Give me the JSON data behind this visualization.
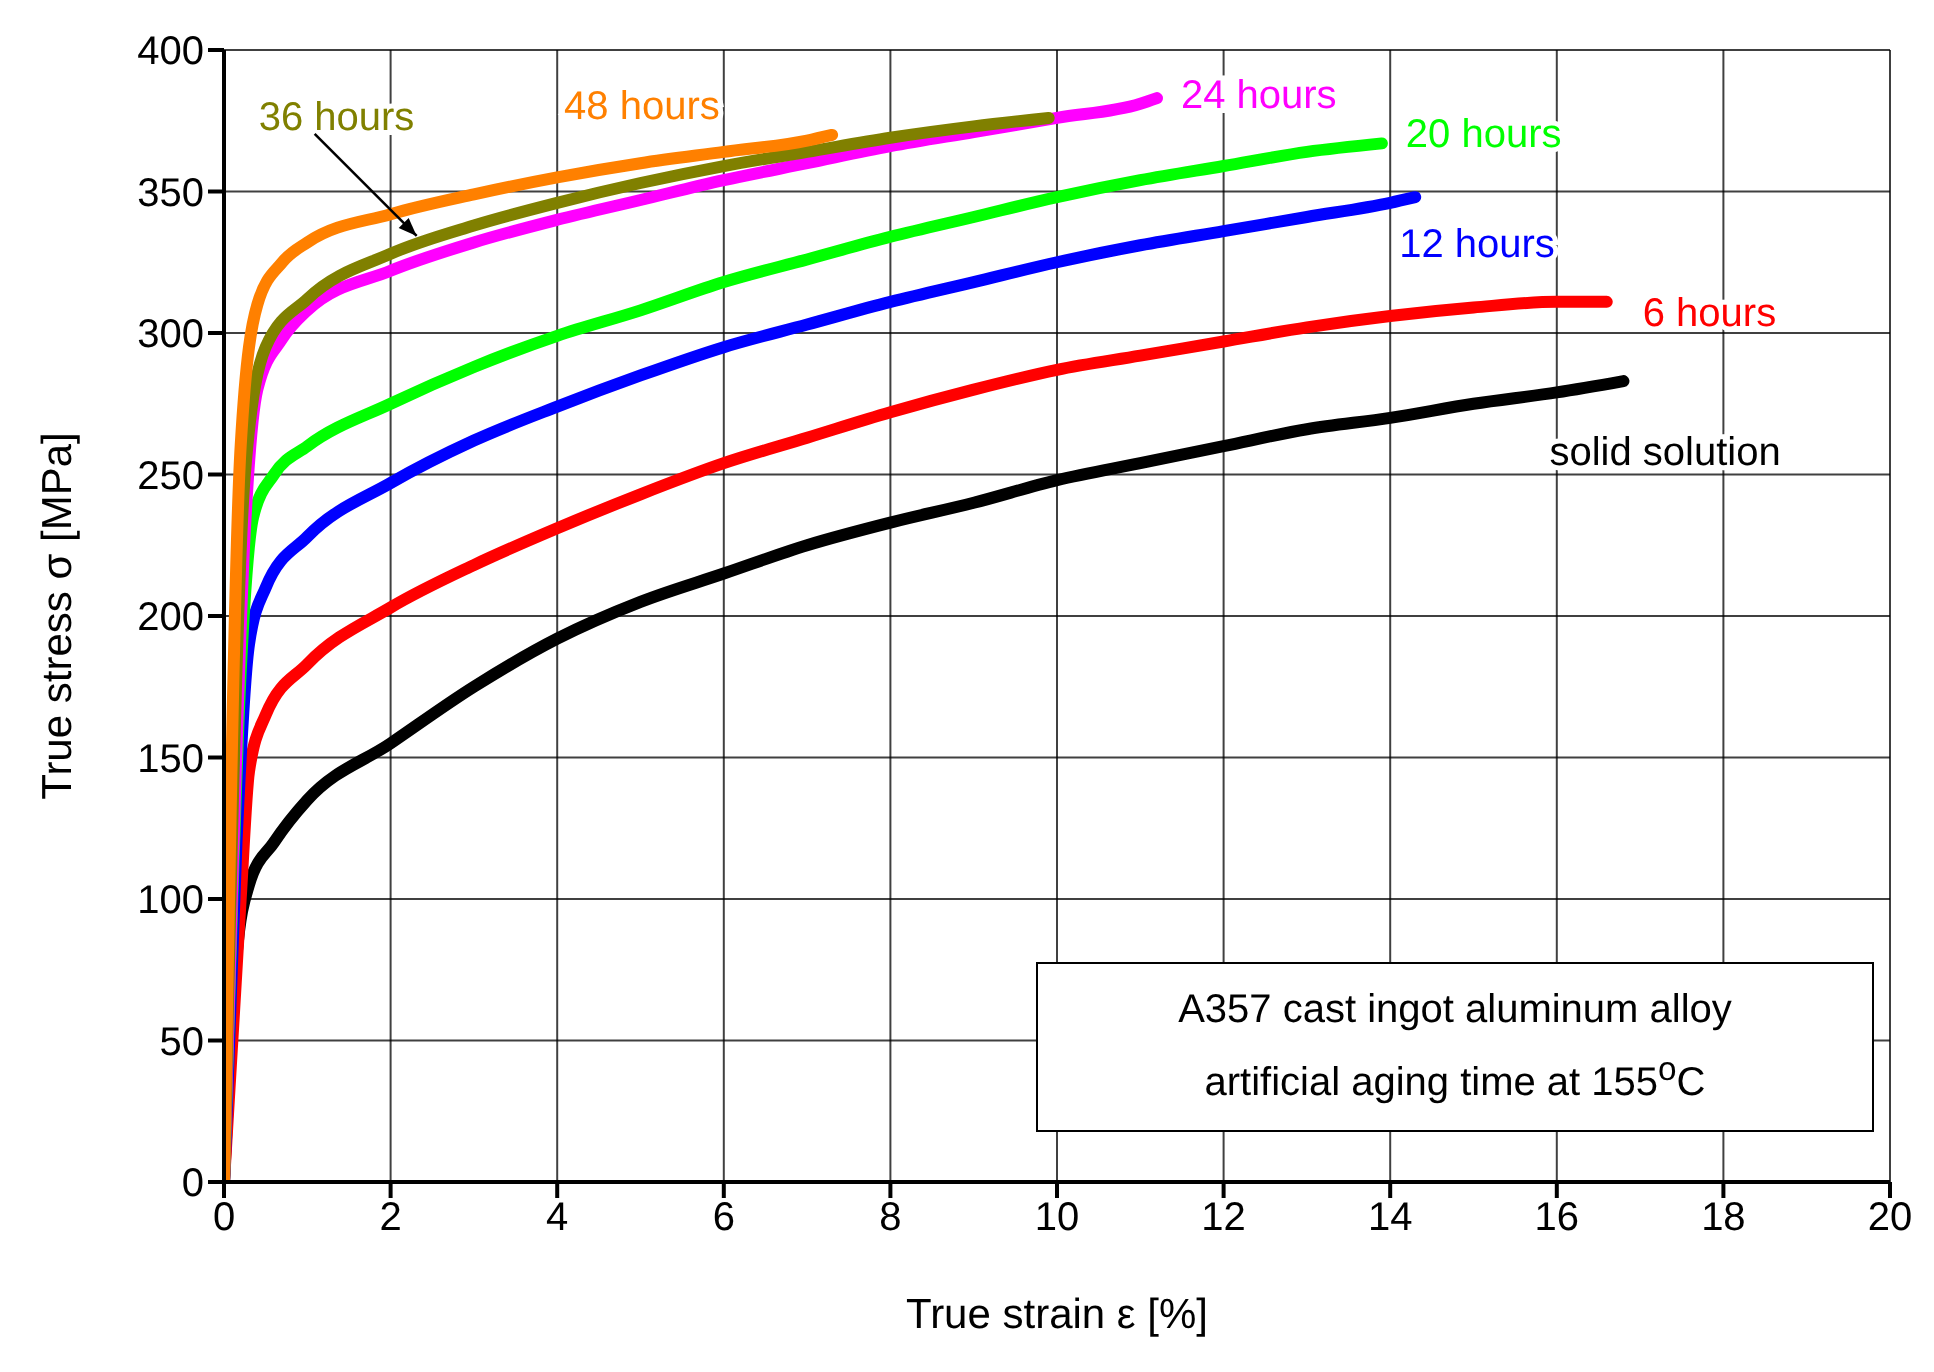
{
  "chart_data": {
    "type": "line",
    "xlabel": "True strain ε [%]",
    "ylabel": "True stress σ [MPa]",
    "xlim": [
      0,
      20
    ],
    "xticks": [
      0,
      2,
      4,
      6,
      8,
      10,
      12,
      14,
      16,
      18,
      20
    ],
    "ylim": [
      0,
      400
    ],
    "yticks": [
      0,
      50,
      100,
      150,
      200,
      250,
      300,
      350,
      400
    ],
    "grid": true,
    "legend": false,
    "marker": "none",
    "line_style": "solid",
    "annotations": [
      "A357 cast ingot aluminum alloy",
      "artificial aging time at 155$^{o}$C"
    ],
    "series": [
      {
        "name": "solid solution",
        "color": "#000000",
        "x": [
          0,
          0.15,
          0.3,
          0.6,
          1,
          2,
          3,
          4,
          5,
          6,
          7,
          8,
          9,
          10,
          11,
          12,
          13,
          14,
          15,
          16,
          16.8
        ],
        "values": [
          0,
          80,
          105,
          120,
          135,
          155,
          175,
          192,
          205,
          215,
          225,
          233,
          240,
          248,
          254,
          260,
          266,
          270,
          275,
          279,
          283
        ]
      },
      {
        "name": "6 hours",
        "color": "#ff0000",
        "x": [
          0,
          0.2,
          0.3,
          0.5,
          1,
          2,
          3,
          4,
          5,
          6,
          7,
          8,
          9,
          10,
          11,
          12,
          13,
          14,
          15,
          16,
          16.6
        ],
        "values": [
          0,
          100,
          145,
          165,
          183,
          203,
          218,
          231,
          243,
          254,
          263,
          272,
          280,
          287,
          292,
          297,
          302,
          306,
          309,
          311,
          311
        ]
      },
      {
        "name": "12 hours",
        "color": "#0000ff",
        "x": [
          0,
          0.15,
          0.3,
          0.5,
          1,
          2,
          3,
          4,
          5,
          6,
          7,
          8,
          9,
          10,
          11,
          12,
          13,
          14,
          14.3
        ],
        "values": [
          0,
          120,
          190,
          210,
          228,
          247,
          262,
          274,
          285,
          295,
          303,
          311,
          318,
          325,
          331,
          336,
          341,
          346,
          348
        ]
      },
      {
        "name": "20 hours",
        "color": "#00ff00",
        "x": [
          0,
          0.2,
          0.35,
          0.6,
          1,
          2,
          3,
          4,
          5,
          6,
          7,
          8,
          9,
          10,
          11,
          12,
          13,
          13.9
        ],
        "values": [
          0,
          180,
          235,
          250,
          260,
          275,
          288,
          299,
          308,
          318,
          326,
          334,
          341,
          348,
          354,
          359,
          364,
          367
        ]
      },
      {
        "name": "24 hours",
        "color": "#ff00ff",
        "x": [
          0,
          0.25,
          0.4,
          0.7,
          1,
          2,
          3,
          4,
          5,
          6,
          7,
          8,
          9,
          10,
          11,
          11.2
        ],
        "values": [
          0,
          230,
          280,
          298,
          308,
          322,
          332,
          340,
          347,
          354,
          360,
          366,
          371,
          376,
          381,
          383
        ]
      },
      {
        "name": "36 hours",
        "color": "#808000",
        "x": [
          0,
          0.25,
          0.5,
          1,
          2,
          3,
          4,
          5,
          6,
          7,
          8,
          9,
          9.9
        ],
        "values": [
          0,
          250,
          295,
          312,
          328,
          338,
          346,
          353,
          359,
          364,
          369,
          373,
          376
        ]
      },
      {
        "name": "48 hours",
        "color": "#ff8000",
        "x": [
          0,
          0.2,
          0.4,
          0.7,
          1,
          2,
          3,
          4,
          5,
          6,
          7,
          7.3
        ],
        "values": [
          0,
          260,
          310,
          325,
          332,
          342,
          349,
          355,
          360,
          364,
          368,
          370
        ]
      }
    ]
  }
}
